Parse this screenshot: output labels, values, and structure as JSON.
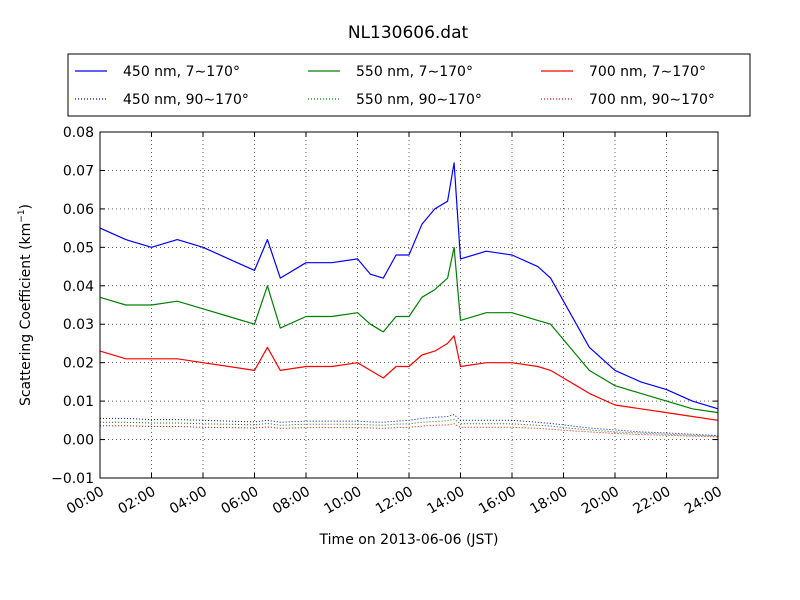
{
  "chart_data": {
    "type": "line",
    "title": "NL130606.dat",
    "xlabel": "Time on 2013-06-06 (JST)",
    "ylabel_main": "Scattering Coefficient (km",
    "ylabel_exp": "−1",
    "ylabel_close": ")",
    "xlim": [
      0,
      24
    ],
    "ylim": [
      -0.01,
      0.08
    ],
    "x_ticks": [
      0,
      2,
      4,
      6,
      8,
      10,
      12,
      14,
      16,
      18,
      20,
      22,
      24
    ],
    "x_tick_labels": [
      "00:00",
      "02:00",
      "04:00",
      "06:00",
      "08:00",
      "10:00",
      "12:00",
      "14:00",
      "16:00",
      "18:00",
      "20:00",
      "22:00",
      "24:00"
    ],
    "y_ticks": [
      -0.01,
      0.0,
      0.01,
      0.02,
      0.03,
      0.04,
      0.05,
      0.06,
      0.07,
      0.08
    ],
    "y_tick_labels": [
      "−0.01",
      "0.00",
      "0.01",
      "0.02",
      "0.03",
      "0.04",
      "0.05",
      "0.06",
      "0.07",
      "0.08"
    ],
    "grid": true,
    "legend_position": "top",
    "x": [
      0,
      1,
      2,
      3,
      4,
      5,
      6,
      6.5,
      7,
      8,
      9,
      10,
      10.5,
      11,
      11.5,
      12,
      12.5,
      13,
      13.5,
      13.75,
      14,
      15,
      16,
      17,
      17.5,
      18,
      18.5,
      19,
      20,
      21,
      22,
      23,
      24
    ],
    "series": [
      {
        "name": "450 nm, 7∼170°",
        "color": "#0000ff",
        "style": "solid",
        "values": [
          0.055,
          0.052,
          0.05,
          0.052,
          0.05,
          0.047,
          0.044,
          0.052,
          0.042,
          0.046,
          0.046,
          0.047,
          0.043,
          0.042,
          0.048,
          0.048,
          0.056,
          0.06,
          0.062,
          0.072,
          0.047,
          0.049,
          0.048,
          0.045,
          0.042,
          0.036,
          0.03,
          0.024,
          0.018,
          0.015,
          0.013,
          0.01,
          0.008
        ]
      },
      {
        "name": "550 nm, 7∼170°",
        "color": "#008000",
        "style": "solid",
        "values": [
          0.037,
          0.035,
          0.035,
          0.036,
          0.034,
          0.032,
          0.03,
          0.04,
          0.029,
          0.032,
          0.032,
          0.033,
          0.03,
          0.028,
          0.032,
          0.032,
          0.037,
          0.039,
          0.042,
          0.05,
          0.031,
          0.033,
          0.033,
          0.031,
          0.03,
          0.026,
          0.022,
          0.018,
          0.014,
          0.012,
          0.01,
          0.008,
          0.007
        ]
      },
      {
        "name": "700 nm, 7∼170°",
        "color": "#ff0000",
        "style": "solid",
        "values": [
          0.023,
          0.021,
          0.021,
          0.021,
          0.02,
          0.019,
          0.018,
          0.024,
          0.018,
          0.019,
          0.019,
          0.02,
          0.018,
          0.016,
          0.019,
          0.019,
          0.022,
          0.023,
          0.025,
          0.027,
          0.019,
          0.02,
          0.02,
          0.019,
          0.018,
          0.016,
          0.014,
          0.012,
          0.009,
          0.008,
          0.007,
          0.006,
          0.005
        ]
      },
      {
        "name": "450 nm, 90∼170°",
        "color": "#0000ff",
        "style": "dotted",
        "values": [
          0.0055,
          0.0055,
          0.0052,
          0.0052,
          0.005,
          0.0048,
          0.0046,
          0.005,
          0.0045,
          0.0048,
          0.0048,
          0.0048,
          0.0046,
          0.0045,
          0.0048,
          0.005,
          0.0055,
          0.0058,
          0.006,
          0.0065,
          0.005,
          0.005,
          0.005,
          0.0045,
          0.0042,
          0.0038,
          0.0034,
          0.003,
          0.0025,
          0.002,
          0.0017,
          0.0014,
          0.001
        ]
      },
      {
        "name": "550 nm, 90∼170°",
        "color": "#008000",
        "style": "dotted",
        "values": [
          0.0045,
          0.0045,
          0.0043,
          0.0043,
          0.0041,
          0.004,
          0.0038,
          0.0042,
          0.0037,
          0.004,
          0.004,
          0.004,
          0.0038,
          0.0037,
          0.004,
          0.0041,
          0.0045,
          0.0047,
          0.0049,
          0.0053,
          0.0041,
          0.0041,
          0.0041,
          0.0037,
          0.0035,
          0.0031,
          0.0028,
          0.0025,
          0.002,
          0.0017,
          0.0014,
          0.0011,
          0.0009
        ]
      },
      {
        "name": "700 nm, 90∼170°",
        "color": "#ff0000",
        "style": "dotted",
        "values": [
          0.0036,
          0.0036,
          0.0034,
          0.0034,
          0.0032,
          0.0031,
          0.003,
          0.0033,
          0.0029,
          0.0031,
          0.0031,
          0.0031,
          0.003,
          0.0029,
          0.0031,
          0.0032,
          0.0035,
          0.0037,
          0.0038,
          0.0041,
          0.0032,
          0.0032,
          0.0032,
          0.0029,
          0.0027,
          0.0024,
          0.0022,
          0.002,
          0.0016,
          0.0013,
          0.0011,
          0.0009,
          0.0007
        ]
      }
    ]
  }
}
